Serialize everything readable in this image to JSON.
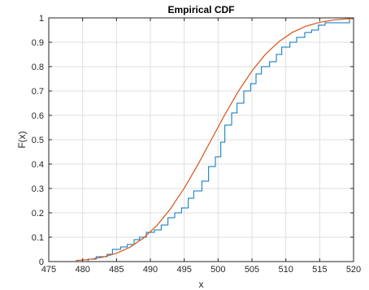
{
  "chart_data": {
    "type": "line",
    "title": "Empirical CDF",
    "xlabel": "x",
    "ylabel": "F(x)",
    "xlim": [
      475,
      520
    ],
    "ylim": [
      0,
      1
    ],
    "xticks": [
      475,
      480,
      485,
      490,
      495,
      500,
      505,
      510,
      515,
      520
    ],
    "yticks": [
      0,
      0.1,
      0.2,
      0.3,
      0.4,
      0.5,
      0.6,
      0.7,
      0.8,
      0.9,
      1
    ],
    "grid": true,
    "colors": {
      "empirical": "#0072BD",
      "fitted": "#D95319",
      "grid": "#dfdfdf",
      "axis": "#262626"
    },
    "series": [
      {
        "type": "stairs",
        "x": [
          480.8,
          482.0,
          483.6,
          484.4,
          485.6,
          486.6,
          487.6,
          488.4,
          489.4,
          490.6,
          491.6,
          492.6,
          493.6,
          494.6,
          495.6,
          496.4,
          497.6,
          498.6,
          499.6,
          500.4,
          501.0,
          502.0,
          502.8,
          503.8,
          504.8,
          505.6,
          506.4,
          507.6,
          508.6,
          509.4,
          510.6,
          511.6,
          512.8,
          513.8,
          514.8,
          515.8,
          519.4
        ],
        "y": [
          0.01,
          0.02,
          0.03,
          0.05,
          0.06,
          0.07,
          0.09,
          0.1,
          0.12,
          0.13,
          0.15,
          0.18,
          0.2,
          0.22,
          0.26,
          0.29,
          0.33,
          0.39,
          0.43,
          0.49,
          0.56,
          0.61,
          0.65,
          0.7,
          0.73,
          0.77,
          0.8,
          0.82,
          0.85,
          0.88,
          0.9,
          0.92,
          0.94,
          0.95,
          0.97,
          0.98,
          1.0
        ]
      },
      {
        "type": "line",
        "x": [
          479,
          481,
          483,
          485,
          487,
          489,
          491,
          493,
          495,
          497,
          499,
          501,
          503,
          505,
          507,
          509,
          511,
          513,
          515,
          517,
          519,
          520
        ],
        "y": [
          0.004,
          0.009,
          0.018,
          0.034,
          0.059,
          0.097,
          0.149,
          0.218,
          0.301,
          0.397,
          0.5,
          0.603,
          0.699,
          0.782,
          0.851,
          0.903,
          0.941,
          0.966,
          0.982,
          0.991,
          0.996,
          0.997
        ]
      }
    ]
  }
}
